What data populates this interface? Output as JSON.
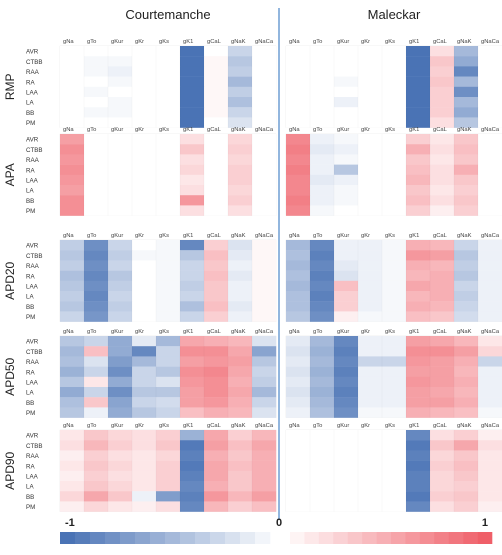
{
  "chart_data": {
    "type": "heatmap",
    "models": [
      "Courtemanche",
      "Maleckar"
    ],
    "metrics": [
      "RMP",
      "APA",
      "APD20",
      "APD50",
      "APD90"
    ],
    "conductances": [
      "gNa",
      "gTo",
      "gKur",
      "gKr",
      "gKs",
      "gK1",
      "gCaL",
      "gNaK",
      "gNaCa"
    ],
    "regions": [
      "AVR",
      "CTBB",
      "RAA",
      "RA",
      "LAA",
      "LA",
      "BB",
      "PM"
    ],
    "colorbar": {
      "min_label": "-1",
      "mid_label": "0",
      "max_label": "1",
      "range": [
        -1,
        1
      ]
    },
    "panels": [
      {
        "model": "Courtemanche",
        "metric": "RMP",
        "values": [
          [
            0,
            0,
            0,
            0,
            0,
            -1,
            0,
            -0.3,
            0
          ],
          [
            0,
            -0.05,
            -0.05,
            0,
            0,
            -1,
            0.05,
            -0.4,
            0
          ],
          [
            0,
            -0.05,
            -0.1,
            0,
            0,
            -1,
            0.05,
            -0.35,
            0
          ],
          [
            0,
            0,
            -0.05,
            0,
            0,
            -1,
            0.05,
            -0.5,
            0
          ],
          [
            0,
            -0.05,
            0,
            0,
            0,
            -1,
            0.05,
            -0.35,
            0
          ],
          [
            0,
            0,
            -0.05,
            0,
            0,
            -1,
            0.05,
            -0.45,
            0
          ],
          [
            0,
            -0.05,
            -0.05,
            0,
            0,
            -1,
            0.05,
            -0.3,
            0
          ],
          [
            0,
            0,
            0,
            0,
            0,
            -1,
            0,
            -0.2,
            0
          ]
        ]
      },
      {
        "model": "Maleckar",
        "metric": "RMP",
        "values": [
          [
            0,
            0,
            0,
            0,
            0,
            -1,
            0.2,
            -0.5,
            0
          ],
          [
            0,
            0,
            0,
            0,
            0,
            -1,
            0.35,
            -0.6,
            0
          ],
          [
            0,
            0,
            0,
            0,
            0,
            -1,
            0.3,
            -0.85,
            0
          ],
          [
            0,
            0,
            -0.05,
            0,
            0,
            -1,
            0.35,
            -0.5,
            0
          ],
          [
            0,
            0,
            0,
            0,
            0,
            -1,
            0.3,
            -0.8,
            0
          ],
          [
            0,
            0,
            -0.1,
            0,
            0,
            -1,
            0.3,
            -0.5,
            0
          ],
          [
            0,
            0,
            0,
            0,
            0,
            -1,
            0.3,
            -0.6,
            0
          ],
          [
            0,
            0,
            0,
            0,
            0,
            -1,
            0.2,
            -0.4,
            0
          ]
        ]
      },
      {
        "model": "Courtemanche",
        "metric": "APA",
        "values": [
          [
            0.6,
            0,
            0,
            0,
            0,
            0.2,
            0,
            0.25,
            0
          ],
          [
            0.7,
            0,
            0,
            0,
            0,
            0.35,
            0,
            0.3,
            0
          ],
          [
            0.65,
            0,
            0,
            0,
            0,
            0.2,
            0,
            0.25,
            0
          ],
          [
            0.7,
            0,
            0,
            0,
            0,
            0.25,
            0,
            0.3,
            0
          ],
          [
            0.65,
            0,
            0,
            0,
            0,
            0.15,
            0,
            0.3,
            0
          ],
          [
            0.6,
            0,
            0,
            0,
            0,
            0.2,
            0,
            0.25,
            0
          ],
          [
            0.7,
            0,
            0,
            0,
            0,
            0.65,
            0,
            0.3,
            0
          ],
          [
            0.7,
            0,
            0,
            0,
            0,
            0.2,
            0,
            0.2,
            0
          ]
        ]
      },
      {
        "model": "Maleckar",
        "metric": "APA",
        "values": [
          [
            0.75,
            -0.1,
            -0.05,
            0,
            0,
            0.3,
            0.15,
            0.35,
            0
          ],
          [
            0.8,
            -0.15,
            -0.1,
            0,
            0,
            0.5,
            0.2,
            0.4,
            0
          ],
          [
            0.75,
            -0.1,
            -0.05,
            0,
            0,
            0.35,
            0.15,
            0.35,
            0
          ],
          [
            0.8,
            -0.1,
            -0.4,
            0,
            0,
            0.4,
            0.2,
            0.5,
            0
          ],
          [
            0.75,
            -0.15,
            -0.1,
            0,
            0,
            0.45,
            0.2,
            0.35,
            0
          ],
          [
            0.75,
            -0.1,
            -0.05,
            0,
            0,
            0.35,
            0.15,
            0.3,
            0
          ],
          [
            0.8,
            -0.1,
            -0.05,
            0,
            0,
            0.4,
            0.2,
            0.35,
            0
          ],
          [
            0.75,
            -0.05,
            0,
            0,
            0,
            0.3,
            0.1,
            0.3,
            0
          ]
        ]
      },
      {
        "model": "Courtemanche",
        "metric": "APD20",
        "values": [
          [
            -0.35,
            -0.8,
            -0.3,
            0,
            -0.05,
            -0.85,
            0.3,
            -0.2,
            0.05
          ],
          [
            -0.4,
            -0.85,
            -0.35,
            -0.05,
            -0.05,
            -0.4,
            0.4,
            -0.15,
            0.05
          ],
          [
            -0.35,
            -0.8,
            -0.3,
            0,
            -0.05,
            -0.3,
            0.35,
            -0.1,
            0.05
          ],
          [
            -0.45,
            -0.85,
            -0.4,
            0,
            -0.05,
            -0.3,
            0.4,
            -0.15,
            0.05
          ],
          [
            -0.4,
            -0.8,
            -0.35,
            0,
            -0.05,
            -0.35,
            0.35,
            -0.1,
            0.05
          ],
          [
            -0.35,
            -0.85,
            -0.3,
            0,
            -0.05,
            -0.3,
            0.35,
            -0.1,
            0.05
          ],
          [
            -0.4,
            -0.8,
            -0.35,
            0,
            -0.05,
            -0.45,
            0.4,
            -0.15,
            0.05
          ],
          [
            -0.3,
            -0.75,
            -0.3,
            0,
            -0.05,
            -0.3,
            0.3,
            -0.1,
            0.05
          ]
        ]
      },
      {
        "model": "Maleckar",
        "metric": "APD20",
        "values": [
          [
            -0.5,
            -0.85,
            -0.1,
            -0.1,
            -0.05,
            0.5,
            0.45,
            -0.3,
            -0.1
          ],
          [
            -0.45,
            -0.9,
            -0.1,
            -0.1,
            -0.05,
            0.65,
            0.6,
            -0.4,
            -0.1
          ],
          [
            -0.5,
            -0.85,
            -0.15,
            -0.1,
            -0.05,
            0.5,
            0.45,
            -0.35,
            -0.1
          ],
          [
            -0.45,
            -0.9,
            -0.2,
            -0.1,
            -0.05,
            0.45,
            0.5,
            -0.4,
            -0.1
          ],
          [
            -0.5,
            -0.85,
            0.4,
            -0.1,
            -0.05,
            0.55,
            0.5,
            -0.3,
            -0.1
          ],
          [
            -0.45,
            -0.9,
            0.3,
            -0.1,
            -0.05,
            0.45,
            0.5,
            -0.35,
            -0.1
          ],
          [
            -0.45,
            -0.85,
            0.3,
            -0.1,
            -0.05,
            0.5,
            0.45,
            -0.3,
            -0.1
          ],
          [
            -0.4,
            -0.8,
            0.1,
            -0.05,
            -0.05,
            0.4,
            0.35,
            -0.25,
            -0.1
          ]
        ]
      },
      {
        "model": "Courtemanche",
        "metric": "APD50",
        "values": [
          [
            -0.4,
            -0.3,
            -0.6,
            -0.15,
            -0.5,
            0.55,
            0.5,
            0.45,
            -0.2
          ],
          [
            -0.5,
            0.4,
            -0.6,
            -0.85,
            -0.3,
            0.7,
            0.7,
            0.55,
            -0.65
          ],
          [
            -0.45,
            -0.2,
            -0.7,
            -0.5,
            -0.3,
            0.6,
            0.65,
            0.6,
            -0.4
          ],
          [
            -0.55,
            -0.3,
            -0.8,
            -0.3,
            -0.4,
            0.7,
            0.75,
            0.55,
            -0.3
          ],
          [
            -0.4,
            0.15,
            -0.6,
            -0.3,
            -0.2,
            0.65,
            0.7,
            0.5,
            -0.35
          ],
          [
            -0.6,
            -0.3,
            -0.8,
            -0.4,
            -0.4,
            0.6,
            0.7,
            0.55,
            -0.5
          ],
          [
            -0.45,
            0.35,
            -0.65,
            -0.3,
            -0.25,
            0.6,
            0.65,
            0.5,
            -0.3
          ],
          [
            -0.4,
            -0.1,
            -0.6,
            -0.4,
            -0.3,
            0.4,
            0.5,
            0.45,
            -0.2
          ]
        ]
      },
      {
        "model": "Maleckar",
        "metric": "APD50",
        "values": [
          [
            -0.15,
            -0.5,
            -0.85,
            -0.1,
            -0.1,
            0.6,
            0.55,
            0.45,
            0.15
          ],
          [
            -0.2,
            -0.55,
            -0.9,
            -0.1,
            -0.1,
            0.7,
            0.7,
            0.6,
            0.25
          ],
          [
            -0.15,
            -0.5,
            -0.85,
            -0.3,
            -0.3,
            0.65,
            0.6,
            0.5,
            -0.3
          ],
          [
            -0.2,
            -0.55,
            -0.9,
            -0.1,
            -0.1,
            0.6,
            0.6,
            0.45,
            -0.1
          ],
          [
            -0.15,
            -0.5,
            -0.85,
            -0.1,
            -0.1,
            0.65,
            0.6,
            0.5,
            -0.1
          ],
          [
            -0.2,
            -0.55,
            -0.9,
            -0.1,
            -0.1,
            0.6,
            0.55,
            0.45,
            -0.1
          ],
          [
            -0.15,
            -0.5,
            -0.85,
            -0.1,
            -0.1,
            0.6,
            0.6,
            0.5,
            -0.1
          ],
          [
            -0.1,
            -0.45,
            -0.8,
            -0.05,
            -0.05,
            0.5,
            0.45,
            0.4,
            -0.05
          ]
        ]
      },
      {
        "model": "Courtemanche",
        "metric": "APD90",
        "values": [
          [
            0.15,
            0.35,
            0.25,
            0.2,
            0.3,
            -0.55,
            0.55,
            0.3,
            0.45
          ],
          [
            0.2,
            0.45,
            0.3,
            0.2,
            0.35,
            -0.95,
            0.6,
            0.4,
            0.55
          ],
          [
            0.1,
            0.3,
            0.2,
            0.15,
            0.25,
            -0.9,
            0.5,
            0.35,
            0.5
          ],
          [
            0.15,
            0.35,
            0.25,
            0.15,
            0.3,
            -0.95,
            0.55,
            0.4,
            0.5
          ],
          [
            0.1,
            0.3,
            0.2,
            0.15,
            0.3,
            -0.9,
            0.55,
            0.35,
            0.5
          ],
          [
            0.15,
            0.35,
            0.25,
            0.15,
            0.3,
            -0.85,
            0.5,
            0.35,
            0.5
          ],
          [
            0.25,
            0.55,
            0.35,
            -0.1,
            -0.7,
            -0.9,
            0.65,
            0.45,
            0.6
          ],
          [
            0.1,
            0.25,
            0.15,
            0.1,
            0.2,
            -0.85,
            0.45,
            0.3,
            0.4
          ]
        ]
      },
      {
        "model": "Maleckar",
        "metric": "APD90",
        "values": [
          [
            0,
            0,
            0,
            0,
            0,
            -0.85,
            0.2,
            0.3,
            0.1
          ],
          [
            0,
            0,
            0,
            0,
            0,
            -0.95,
            0.35,
            0.55,
            0.2
          ],
          [
            0,
            0,
            0,
            0,
            0,
            -0.9,
            0.25,
            0.35,
            0.15
          ],
          [
            0,
            0,
            0,
            0,
            0,
            -0.95,
            0.3,
            0.4,
            0.15
          ],
          [
            0,
            0,
            0,
            0,
            0,
            -0.9,
            0.25,
            0.35,
            0.15
          ],
          [
            0,
            0,
            0,
            0,
            0,
            -0.9,
            0.25,
            0.3,
            0.15
          ],
          [
            0,
            0,
            0,
            0,
            0,
            -0.95,
            0.3,
            0.35,
            0.15
          ],
          [
            0,
            0,
            0,
            0,
            0,
            -0.85,
            0.2,
            0.3,
            0.1
          ]
        ]
      }
    ]
  },
  "colors": {
    "negative": "#4a73b5",
    "neutral": "#ffffff",
    "positive": "#ef5f68",
    "divider": "#4a86c8",
    "grid": "#e6e6e6"
  }
}
